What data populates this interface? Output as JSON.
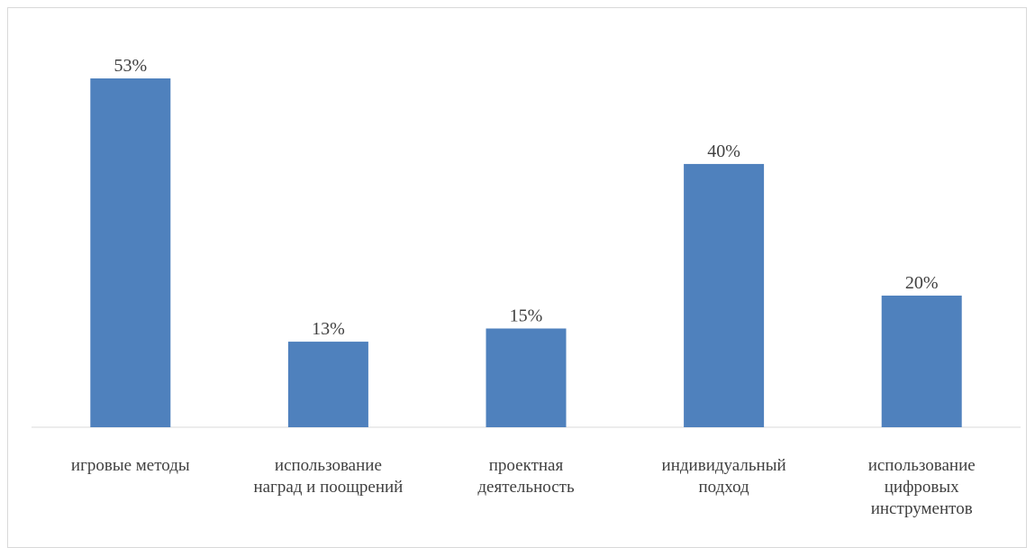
{
  "chart_data": {
    "type": "bar",
    "title": "",
    "xlabel": "",
    "ylabel": "",
    "categories": [
      [
        "игровые методы"
      ],
      [
        "использование",
        "наград и поощрений"
      ],
      [
        "проектная",
        "деятельность"
      ],
      [
        "индивидуальный",
        "подход"
      ],
      [
        "использование",
        "цифровых",
        "инструментов"
      ]
    ],
    "values": [
      53,
      13,
      15,
      40,
      20
    ],
    "data_labels": [
      "53%",
      "13%",
      "15%",
      "40%",
      "20%"
    ],
    "ylim": [
      0,
      53
    ],
    "grid": false,
    "legend": "none",
    "bar_color": "#4f81bd"
  }
}
